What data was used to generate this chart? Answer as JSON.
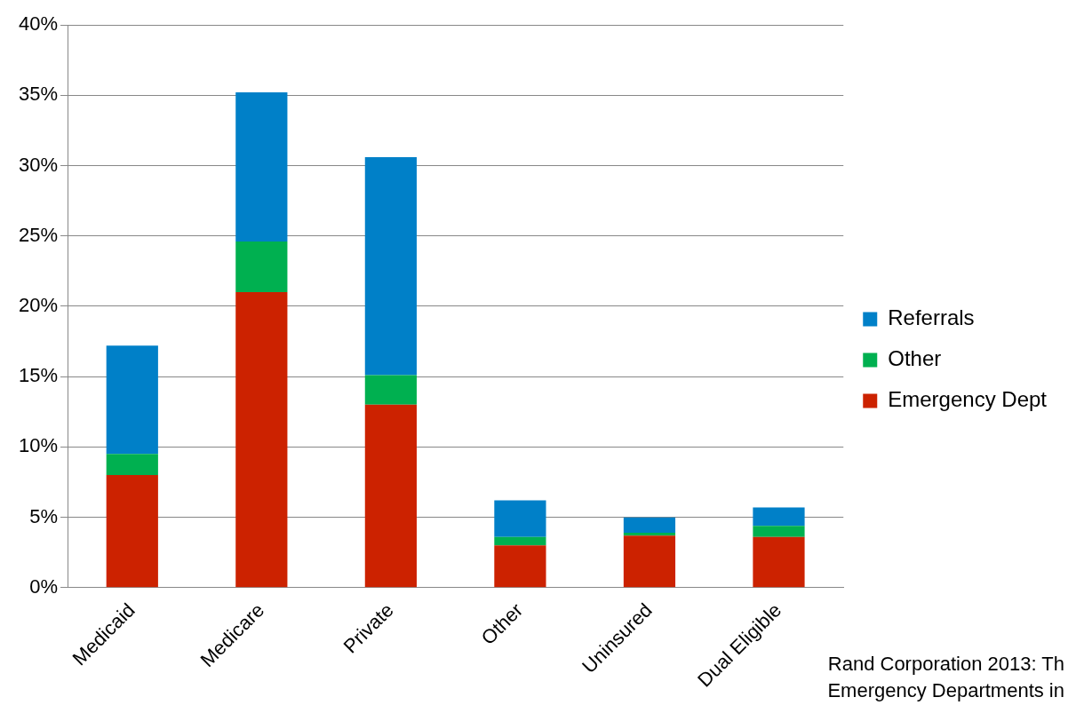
{
  "chart_data": {
    "type": "bar",
    "stacked": true,
    "categories": [
      "Medicaid",
      "Medicare",
      "Private",
      "Other",
      "Uninsured",
      "Dual Eligible"
    ],
    "series": [
      {
        "name": "Emergency Dept",
        "color": "#cc2200",
        "values": [
          8.0,
          21.0,
          13.0,
          3.0,
          3.7,
          3.6
        ]
      },
      {
        "name": "Other",
        "color": "#00b050",
        "values": [
          1.5,
          3.6,
          2.1,
          0.6,
          0.2,
          0.8
        ]
      },
      {
        "name": "Referrals",
        "color": "#0080c8",
        "values": [
          7.7,
          10.6,
          15.5,
          2.6,
          1.1,
          1.3
        ]
      }
    ],
    "ylim": [
      0,
      40
    ],
    "yticks": [
      {
        "value": 0,
        "label": "0%"
      },
      {
        "value": 5,
        "label": "5%"
      },
      {
        "value": 10,
        "label": "10%"
      },
      {
        "value": 15,
        "label": "15%"
      },
      {
        "value": 20,
        "label": "20%"
      },
      {
        "value": 25,
        "label": "25%"
      },
      {
        "value": 30,
        "label": "30%"
      },
      {
        "value": 35,
        "label": "35%"
      },
      {
        "value": 40,
        "label": "40%"
      }
    ],
    "grid": "y",
    "legend": "right",
    "annotations": [
      "Rand  Corporation 2013: Th",
      "Emergency Departments in"
    ]
  }
}
